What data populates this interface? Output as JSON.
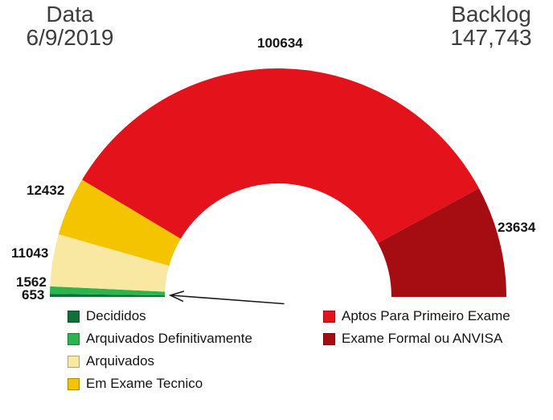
{
  "header": {
    "date_label": "Data",
    "date_value": "6/9/2019",
    "backlog_label": "Backlog",
    "backlog_value": "147,743"
  },
  "chart_data": {
    "type": "pie",
    "subtype": "half-donut-gauge",
    "start_angle_deg": 180,
    "end_angle_deg": 0,
    "legend_position": "bottom",
    "value_labels_shown": true,
    "segments": [
      {
        "label": "Decididos",
        "value": 653,
        "color": "#10703a"
      },
      {
        "label": "Arquivados Definitivamente",
        "value": 1562,
        "color": "#2db44d"
      },
      {
        "label": "Arquivados",
        "value": 11043,
        "color": "#f8e8a2"
      },
      {
        "label": "Em Exame Tecnico",
        "value": 12432,
        "color": "#f5c400"
      },
      {
        "label": "Aptos Para Primeiro Exame",
        "value": 100634,
        "color": "#e4121b"
      },
      {
        "label": "Exame Formal ou ANVISA",
        "value": 23634,
        "color": "#a50d12"
      }
    ]
  }
}
